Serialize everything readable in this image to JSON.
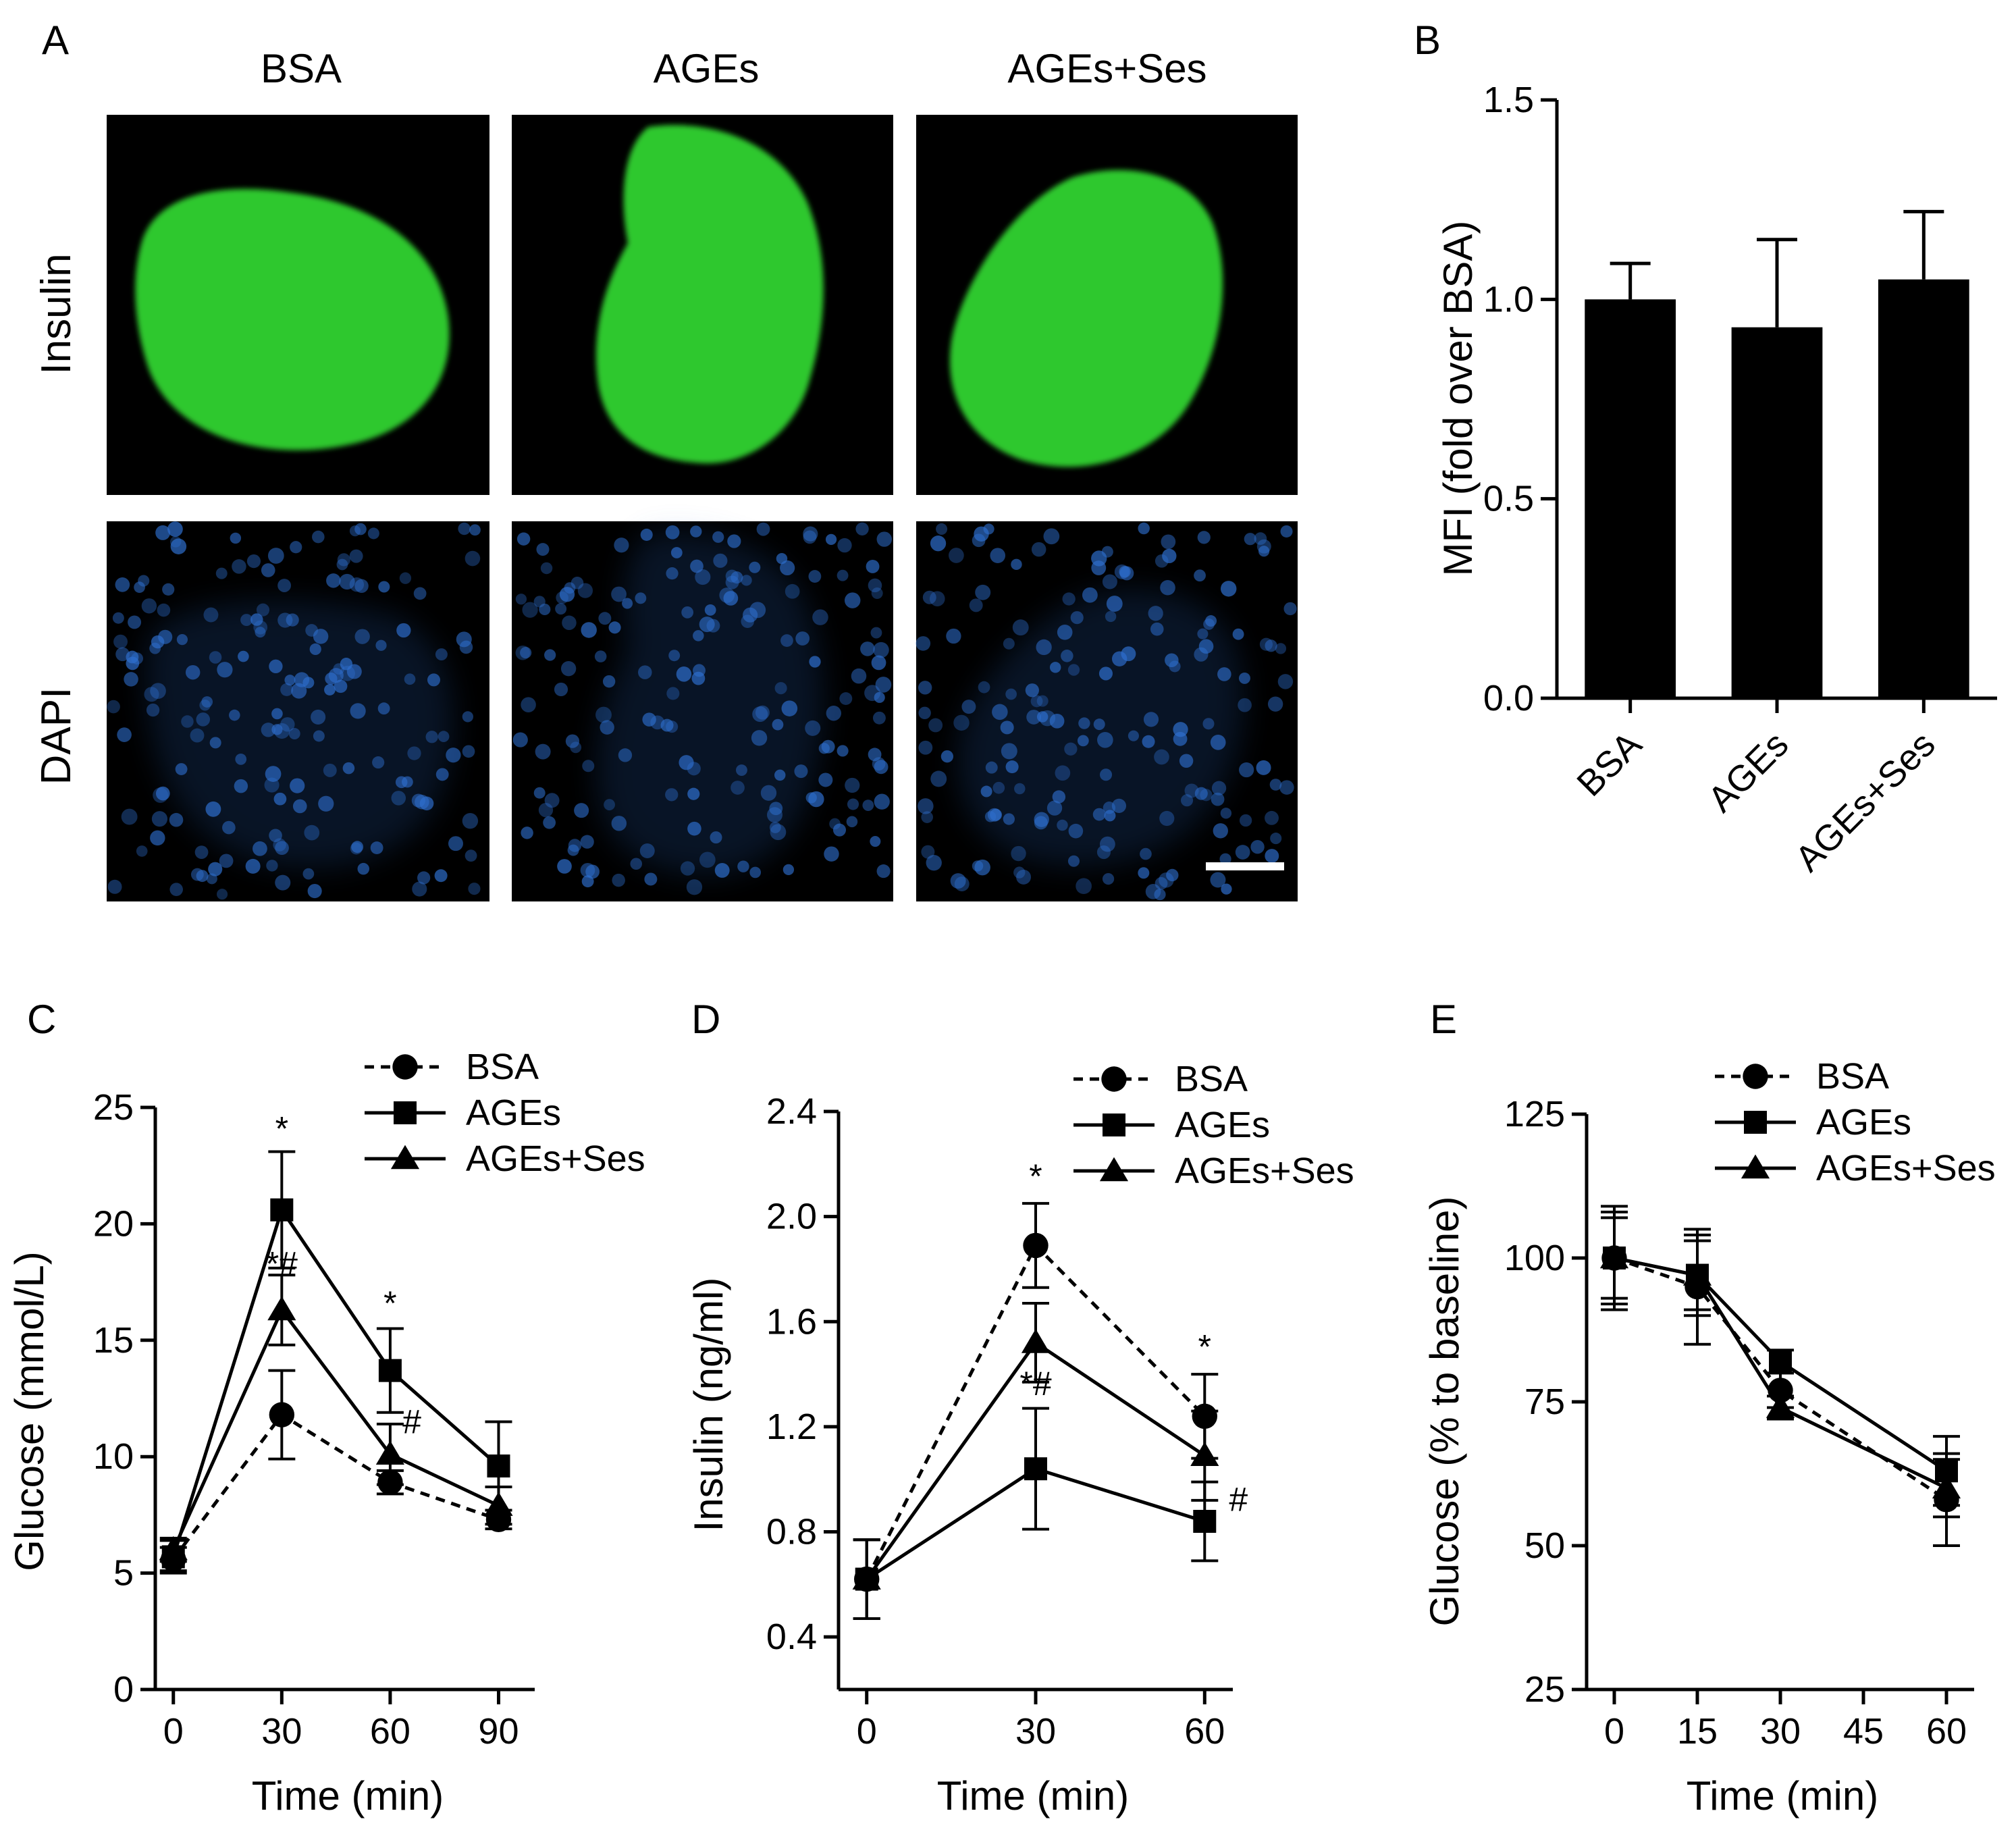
{
  "panels": {
    "a": {
      "letter": "A",
      "columns": [
        "BSA",
        "AGEs",
        "AGEs+Ses"
      ],
      "rows": [
        "Insulin",
        "DAPI"
      ],
      "colors": {
        "insulin": "#2ec82e",
        "dapi": "#2e6fcf",
        "background": "#000000"
      }
    },
    "b": {
      "letter": "B"
    },
    "c": {
      "letter": "C"
    },
    "d": {
      "letter": "D"
    },
    "e": {
      "letter": "E"
    }
  },
  "chart_data": [
    {
      "panel": "B",
      "type": "bar",
      "categories": [
        "BSA",
        "AGEs",
        "AGEs+Ses"
      ],
      "values": [
        1.0,
        0.93,
        1.05
      ],
      "errors": [
        0.09,
        0.22,
        0.17
      ],
      "ylabel": "MFI (fold over BSA)",
      "xlabel": "",
      "ylim": [
        0,
        1.5
      ],
      "yticks": [
        "0.0",
        "0.5",
        "1.0",
        "1.5"
      ],
      "color": "#000000"
    },
    {
      "panel": "C",
      "type": "line",
      "x": [
        0,
        30,
        60,
        90
      ],
      "xticks": [
        "0",
        "30",
        "60",
        "90"
      ],
      "xlim": [
        -5,
        100
      ],
      "ylim": [
        0,
        25
      ],
      "yticks": [
        "0",
        "5",
        "10",
        "15",
        "20",
        "25"
      ],
      "xlabel": "Time (min)",
      "ylabel": "Glucose (mmol/L)",
      "legend": "top-right",
      "series": [
        {
          "name": "BSA",
          "marker": "circle",
          "dashed": true,
          "values": [
            5.6,
            11.8,
            8.9,
            7.3
          ],
          "errors": [
            0.5,
            1.9,
            0.5,
            0.4
          ]
        },
        {
          "name": "AGEs",
          "marker": "square",
          "dashed": false,
          "values": [
            5.7,
            20.6,
            13.7,
            9.6
          ],
          "errors": [
            0.7,
            2.5,
            1.8,
            1.9
          ]
        },
        {
          "name": "AGEs+Ses",
          "marker": "triangle",
          "dashed": false,
          "values": [
            6.0,
            16.3,
            10.1,
            7.9
          ],
          "errors": [
            0.5,
            1.5,
            1.3,
            0.8
          ]
        }
      ],
      "annotations": [
        {
          "text": "*",
          "x": 30,
          "y": 23.6
        },
        {
          "text": "*#",
          "x": 30,
          "y": 17.8
        },
        {
          "text": "*",
          "x": 60,
          "y": 16.1
        },
        {
          "text": "#",
          "x": 66,
          "y": 11.0
        }
      ]
    },
    {
      "panel": "D",
      "type": "line",
      "x": [
        0,
        30,
        60
      ],
      "xticks": [
        "0",
        "30",
        "60"
      ],
      "xlim": [
        -5,
        65
      ],
      "ylim": [
        0.2,
        2.4
      ],
      "yticks": [
        "0.4",
        "0.8",
        "1.2",
        "1.6",
        "2.0",
        "2.4"
      ],
      "xlabel": "Time (min)",
      "ylabel": "Insulin (ng/ml)",
      "legend": "top-right",
      "series": [
        {
          "name": "BSA",
          "marker": "circle",
          "dashed": true,
          "values": [
            0.62,
            1.89,
            1.24
          ],
          "errors": [
            0.15,
            0.16,
            0.16
          ]
        },
        {
          "name": "AGEs",
          "marker": "square",
          "dashed": false,
          "values": [
            0.62,
            1.04,
            0.84
          ],
          "errors": [
            0.15,
            0.23,
            0.15
          ]
        },
        {
          "name": "AGEs+Ses",
          "marker": "triangle",
          "dashed": false,
          "values": [
            0.62,
            1.52,
            1.09
          ],
          "errors": [
            0.15,
            0.15,
            0.17
          ]
        }
      ],
      "annotations": [
        {
          "text": "*",
          "x": 30,
          "y": 2.11
        },
        {
          "text": "*#",
          "x": 30,
          "y": 1.32
        },
        {
          "text": "*",
          "x": 60,
          "y": 1.46
        },
        {
          "text": "#",
          "x": 66,
          "y": 0.88
        }
      ]
    },
    {
      "panel": "E",
      "type": "line",
      "x": [
        0,
        15,
        30,
        60
      ],
      "xticks": [
        "0",
        "15",
        "30",
        "45",
        "60"
      ],
      "xtick_values": [
        0,
        15,
        30,
        45,
        60
      ],
      "xlim": [
        -5,
        65
      ],
      "ylim": [
        25,
        125
      ],
      "yticks": [
        "25",
        "50",
        "75",
        "100",
        "125"
      ],
      "xlabel": "Time (min)",
      "ylabel": "Glucose (% to baseline)",
      "legend": "top-right",
      "series": [
        {
          "name": "BSA",
          "marker": "circle",
          "dashed": true,
          "values": [
            100,
            95,
            77,
            58
          ],
          "errors": [
            9,
            10,
            3,
            8
          ]
        },
        {
          "name": "AGEs",
          "marker": "square",
          "dashed": false,
          "values": [
            100,
            97,
            82,
            63
          ],
          "errors": [
            8,
            7,
            2,
            6
          ]
        },
        {
          "name": "AGEs+Ses",
          "marker": "triangle",
          "dashed": false,
          "values": [
            100,
            97,
            74,
            60
          ],
          "errors": [
            7,
            6,
            2,
            5
          ]
        }
      ]
    }
  ]
}
